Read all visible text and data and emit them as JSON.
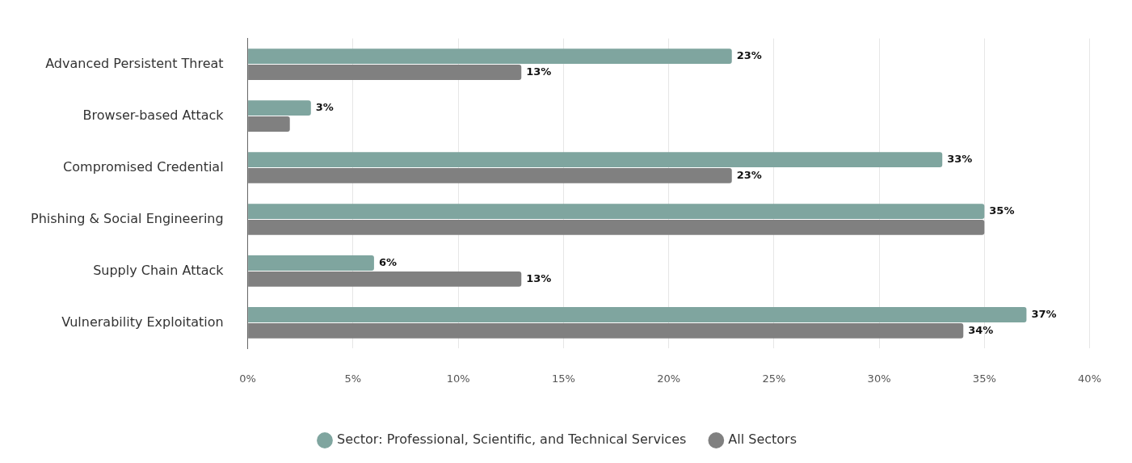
{
  "chart_data": {
    "type": "bar",
    "orientation": "horizontal",
    "categories": [
      "Advanced Persistent Threat",
      "Browser-based Attack",
      "Compromised Credential",
      "Phishing & Social Engineering",
      "Supply Chain Attack",
      "Vulnerability Exploitation"
    ],
    "series": [
      {
        "name": "Sector: Professional, Scientific, and Technical Services",
        "color": "#7fa59f",
        "values": [
          23,
          3,
          33,
          35,
          6,
          37
        ],
        "value_labels": [
          "23%",
          "3%",
          "33%",
          "35%",
          "6%",
          "37%"
        ]
      },
      {
        "name": "All Sectors",
        "color": "#808080",
        "values": [
          13,
          2,
          23,
          35,
          13,
          34
        ],
        "value_labels": [
          "13%",
          null,
          "23%",
          null,
          "13%",
          "34%"
        ]
      }
    ],
    "xlim": [
      0,
      40
    ],
    "xticks": [
      {
        "value": 0,
        "label": "0%"
      },
      {
        "value": 5,
        "label": "5%"
      },
      {
        "value": 10,
        "label": "10%"
      },
      {
        "value": 15,
        "label": "15%"
      },
      {
        "value": 20,
        "label": "20%"
      },
      {
        "value": 25,
        "label": "25%"
      },
      {
        "value": 30,
        "label": "30%"
      },
      {
        "value": 35,
        "label": "35%"
      },
      {
        "value": 40,
        "label": "40%"
      }
    ],
    "grid": "x",
    "legend": "bottom"
  }
}
